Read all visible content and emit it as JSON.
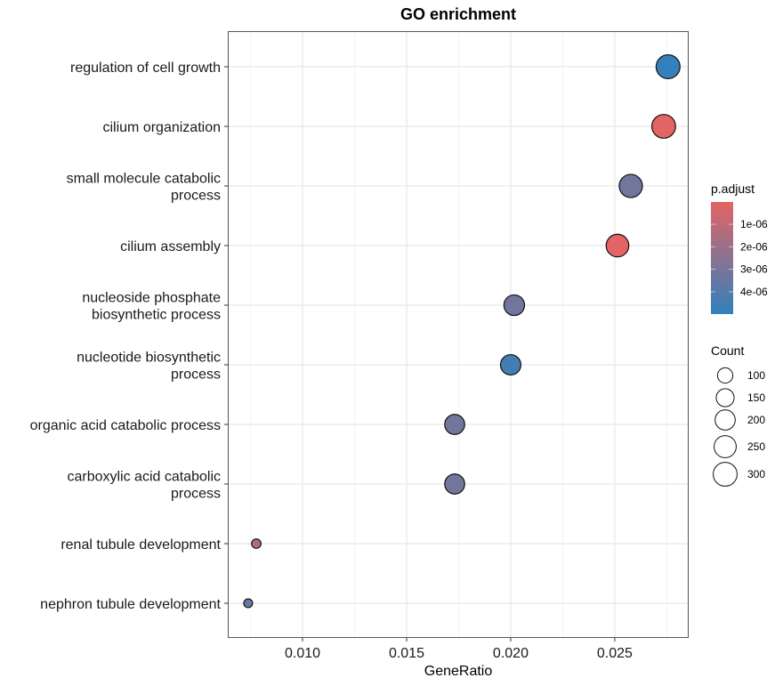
{
  "chart_data": {
    "type": "scatter",
    "title": "GO enrichment",
    "xlabel": "GeneRatio",
    "ylabel": "",
    "xlim": [
      0.00641,
      0.02855
    ],
    "x_ticks": [
      0.01,
      0.015,
      0.02,
      0.025
    ],
    "x_tick_labels": [
      "0.010",
      "0.015",
      "0.020",
      "0.025"
    ],
    "grid": true,
    "categories": [
      [
        "regulation of cell growth"
      ],
      [
        "cilium organization"
      ],
      [
        "small molecule catabolic",
        "process"
      ],
      [
        "cilium assembly"
      ],
      [
        "nucleoside phosphate",
        "biosynthetic process"
      ],
      [
        "nucleotide biosynthetic",
        "process"
      ],
      [
        "organic acid catabolic process"
      ],
      [
        "carboxylic acid catabolic",
        "process"
      ],
      [
        "renal tubule development"
      ],
      [
        "nephron tubule development"
      ]
    ],
    "points": [
      {
        "term": "regulation of cell growth",
        "gene_ratio": 0.02756,
        "count": 300,
        "p_adjust": 4.9e-06
      },
      {
        "term": "cilium organization",
        "gene_ratio": 0.02735,
        "count": 295,
        "p_adjust": 1e-08
      },
      {
        "term": "small molecule catabolic process",
        "gene_ratio": 0.02577,
        "count": 280,
        "p_adjust": 3.2e-06
      },
      {
        "term": "cilium assembly",
        "gene_ratio": 0.02513,
        "count": 265,
        "p_adjust": 2e-08
      },
      {
        "term": "nucleoside phosphate biosynthetic process",
        "gene_ratio": 0.02017,
        "count": 210,
        "p_adjust": 3.2e-06
      },
      {
        "term": "nucleotide biosynthetic process",
        "gene_ratio": 0.02,
        "count": 205,
        "p_adjust": 4.5e-06
      },
      {
        "term": "organic acid catabolic process",
        "gene_ratio": 0.01731,
        "count": 195,
        "p_adjust": 3.2e-06
      },
      {
        "term": "carboxylic acid catabolic process",
        "gene_ratio": 0.01731,
        "count": 195,
        "p_adjust": 3.2e-06
      },
      {
        "term": "renal tubule development",
        "gene_ratio": 0.00778,
        "count": 25,
        "p_adjust": 1.5e-06
      },
      {
        "term": "nephron tubule development",
        "gene_ratio": 0.00739,
        "count": 20,
        "p_adjust": 3.5e-06
      }
    ],
    "color_legend": {
      "title": "p.adjust",
      "range": [
        1e-08,
        4.99e-06
      ],
      "low_color": "#e36464",
      "high_color": "#3280bd",
      "ticks": [
        1e-06,
        2e-06,
        3e-06,
        4e-06
      ],
      "tick_labels": [
        "1e-06",
        "2e-06",
        "3e-06",
        "4e-06"
      ],
      "placement": "right"
    },
    "size_legend": {
      "title": "Count",
      "values": [
        100,
        150,
        200,
        250,
        300
      ],
      "labels": [
        "100",
        "150",
        "200",
        "250",
        "300"
      ],
      "placement": "right"
    }
  }
}
